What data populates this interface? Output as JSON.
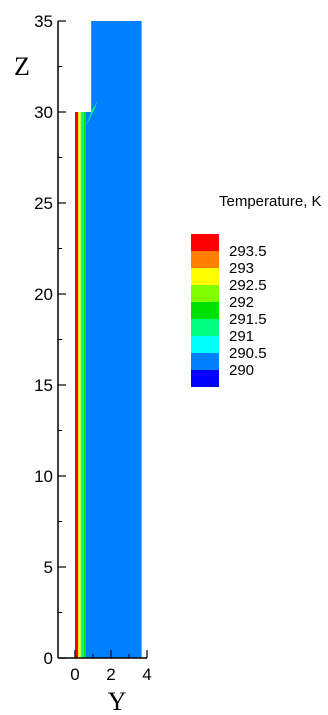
{
  "chart_data": {
    "type": "heatmap",
    "title": "",
    "xlabel": "Y",
    "ylabel": "Z",
    "xlim": [
      -0.5,
      4.0
    ],
    "ylim": [
      0,
      35
    ],
    "x_ticks": [
      0,
      2,
      4
    ],
    "y_ticks": [
      0,
      5,
      10,
      15,
      20,
      25,
      30,
      35
    ],
    "domain": {
      "inlet_strip": {
        "y_range": [
          0,
          0.9
        ],
        "z_range": [
          0,
          30
        ]
      },
      "main_region": {
        "y_range": [
          0.9,
          3.7
        ],
        "z_range": [
          0,
          35
        ]
      }
    },
    "field_bands": [
      {
        "y_range": [
          0.0,
          0.18
        ],
        "z_range": [
          0,
          30
        ],
        "value": 293.5
      },
      {
        "y_range": [
          0.18,
          0.32
        ],
        "z_range": [
          0,
          30
        ],
        "value": 292.5
      },
      {
        "y_range": [
          0.32,
          0.48
        ],
        "z_range": [
          0,
          30
        ],
        "value": 291
      },
      {
        "y_range": [
          0.48,
          0.6
        ],
        "z_range": [
          0,
          30
        ],
        "value": 291.5
      },
      {
        "y_range": [
          0.6,
          3.7
        ],
        "z_range": [
          0,
          35
        ],
        "value": 290
      }
    ],
    "legend": {
      "title": "Temperature, K",
      "placement": "right",
      "levels": [
        293.5,
        293,
        292.5,
        292,
        291.5,
        291,
        290.5,
        290
      ],
      "labels": [
        "293.5",
        "293",
        "292.5",
        "292",
        "291.5",
        "291",
        "290.5",
        "290"
      ],
      "colors": [
        "#ff0000",
        "#ff8000",
        "#ffff00",
        "#80ff00",
        "#00e000",
        "#00ff80",
        "#00ffff",
        "#0080ff",
        "#0000ff"
      ]
    },
    "grid": false
  }
}
